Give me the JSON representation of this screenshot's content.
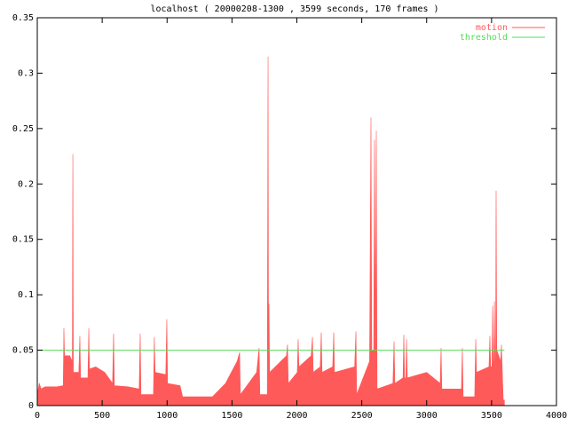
{
  "chart_data": {
    "type": "area",
    "title": "localhost ( 20000208-1300 , 3599 seconds, 170 frames )",
    "xlim": [
      0,
      4000
    ],
    "xticks": [
      0,
      500,
      1000,
      1500,
      2000,
      2500,
      3000,
      3500,
      4000
    ],
    "ylim": [
      0,
      0.35
    ],
    "yticks": [
      0,
      0.05,
      0.1,
      0.15,
      0.2,
      0.25,
      0.3,
      0.35
    ],
    "grid": false,
    "legend": "top-right",
    "series": [
      {
        "name": "motion",
        "color": "#ff5a5a",
        "style": "area",
        "x": [
          0,
          15,
          30,
          60,
          150,
          200,
          205,
          210,
          250,
          270,
          274,
          278,
          320,
          328,
          334,
          390,
          397,
          402,
          450,
          520,
          580,
          588,
          594,
          700,
          785,
          793,
          799,
          895,
          902,
          908,
          990,
          998,
          1004,
          1100,
          1120,
          1350,
          1450,
          1540,
          1559,
          1565,
          1690,
          1709,
          1715,
          1772,
          1778,
          1782,
          1785,
          1790,
          1920,
          1928,
          1934,
          2003,
          2010,
          2016,
          2110,
          2120,
          2126,
          2180,
          2188,
          2194,
          2276,
          2284,
          2290,
          2445,
          2455,
          2461,
          2560,
          2571,
          2577,
          2592,
          2598,
          2605,
          2612,
          2618,
          2740,
          2749,
          2755,
          2818,
          2824,
          2830,
          2840,
          2845,
          2851,
          3000,
          3104,
          3111,
          3117,
          3268,
          3275,
          3281,
          3370,
          3378,
          3384,
          3480,
          3487,
          3493,
          3503,
          3508,
          3513,
          3518,
          3522,
          3527,
          3531,
          3535,
          3540,
          3570,
          3576,
          3590,
          3599
        ],
        "values": [
          0.01,
          0.02,
          0.015,
          0.017,
          0.017,
          0.018,
          0.07,
          0.045,
          0.045,
          0.04,
          0.227,
          0.03,
          0.03,
          0.063,
          0.025,
          0.025,
          0.07,
          0.033,
          0.035,
          0.03,
          0.02,
          0.065,
          0.018,
          0.017,
          0.015,
          0.065,
          0.01,
          0.01,
          0.062,
          0.03,
          0.028,
          0.078,
          0.02,
          0.018,
          0.008,
          0.008,
          0.02,
          0.04,
          0.048,
          0.01,
          0.03,
          0.052,
          0.01,
          0.01,
          0.315,
          0.03,
          0.092,
          0.03,
          0.045,
          0.055,
          0.02,
          0.03,
          0.06,
          0.035,
          0.045,
          0.062,
          0.03,
          0.035,
          0.066,
          0.03,
          0.035,
          0.066,
          0.03,
          0.035,
          0.067,
          0.01,
          0.04,
          0.26,
          0.05,
          0.05,
          0.24,
          0.05,
          0.248,
          0.015,
          0.02,
          0.058,
          0.02,
          0.025,
          0.064,
          0.025,
          0.025,
          0.06,
          0.025,
          0.03,
          0.02,
          0.052,
          0.015,
          0.015,
          0.052,
          0.008,
          0.008,
          0.06,
          0.03,
          0.035,
          0.063,
          0.035,
          0.035,
          0.09,
          0.04,
          0.04,
          0.094,
          0.04,
          0.04,
          0.194,
          0.05,
          0.04,
          0.055,
          0.005,
          0.005
        ]
      },
      {
        "name": "threshold",
        "color": "#55dd55",
        "style": "line",
        "x": [
          0,
          3599
        ],
        "values": [
          0.05,
          0.05
        ]
      }
    ]
  }
}
